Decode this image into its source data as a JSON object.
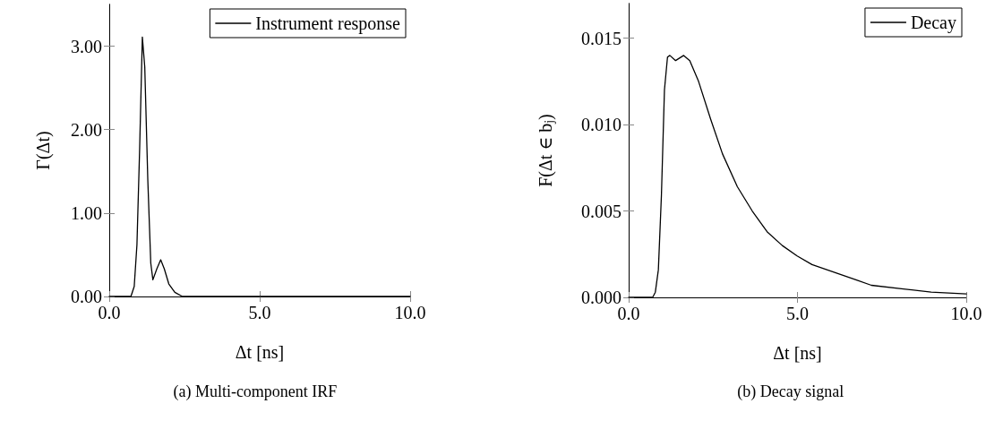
{
  "chart_data": [
    {
      "type": "line",
      "xlabel": "Δt [ns]",
      "ylabel": "Γ(Δt)",
      "legend": "top right",
      "grid": false,
      "marker": "none",
      "line_style": "solid",
      "xlim": [
        0,
        10
      ],
      "xticks": [
        {
          "value": 0,
          "label": "0.0"
        },
        {
          "value": 5,
          "label": "5.0"
        },
        {
          "value": 10,
          "label": "10.0"
        }
      ],
      "ylim": [
        0,
        3.5
      ],
      "yticks": [
        {
          "value": 0,
          "label": "0.00"
        },
        {
          "value": 1,
          "label": "1.00"
        },
        {
          "value": 2,
          "label": "2.00"
        },
        {
          "value": 3,
          "label": "3.00"
        }
      ],
      "annotations": [
        "(a) Multi-component IRF"
      ],
      "series": [
        {
          "name": "Instrument response",
          "color": "#000000",
          "x": [
            0,
            0.72,
            0.83,
            0.92,
            1.01,
            1.1,
            1.18,
            1.28,
            1.38,
            1.45,
            1.58,
            1.71,
            1.83,
            1.98,
            2.18,
            2.43,
            5,
            10
          ],
          "values": [
            0,
            0,
            0.12,
            0.62,
            1.77,
            3.11,
            2.75,
            1.41,
            0.4,
            0.2,
            0.33,
            0.44,
            0.33,
            0.15,
            0.05,
            0,
            0,
            0
          ]
        }
      ]
    },
    {
      "type": "line",
      "xlabel": "Δt [ns]",
      "ylabel": "F(Δt ∈ b$_{j}$)",
      "legend": "top right",
      "grid": false,
      "marker": "none",
      "line_style": "solid",
      "xlim": [
        0,
        10
      ],
      "xticks": [
        {
          "value": 0,
          "label": "0.0"
        },
        {
          "value": 5,
          "label": "5.0"
        },
        {
          "value": 10,
          "label": "10.0"
        }
      ],
      "ylim": [
        0,
        0.017
      ],
      "yticks": [
        {
          "value": 0,
          "label": "0.000"
        },
        {
          "value": 0.005,
          "label": "0.005"
        },
        {
          "value": 0.01,
          "label": "0.010"
        },
        {
          "value": 0.015,
          "label": "0.015"
        }
      ],
      "annotations": [
        "(b) Decay signal"
      ],
      "series": [
        {
          "name": "Decay",
          "color": "#000000",
          "x": [
            0,
            0.71,
            0.79,
            0.88,
            0.97,
            1.06,
            1.15,
            1.22,
            1.39,
            1.63,
            1.81,
            2.07,
            2.43,
            2.78,
            3.22,
            3.66,
            4.1,
            4.55,
            4.99,
            5.43,
            5.87,
            6.31,
            6.75,
            7.19,
            8.08,
            8.96,
            10
          ],
          "values": [
            0,
            0,
            0.0003,
            0.0016,
            0.0059,
            0.012,
            0.0139,
            0.014,
            0.0137,
            0.014,
            0.0137,
            0.0125,
            0.0103,
            0.0083,
            0.0064,
            0.005,
            0.0038,
            0.003,
            0.0024,
            0.0019,
            0.0016,
            0.0013,
            0.001,
            0.0007,
            0.0005,
            0.0003,
            0.0002
          ]
        }
      ]
    }
  ]
}
